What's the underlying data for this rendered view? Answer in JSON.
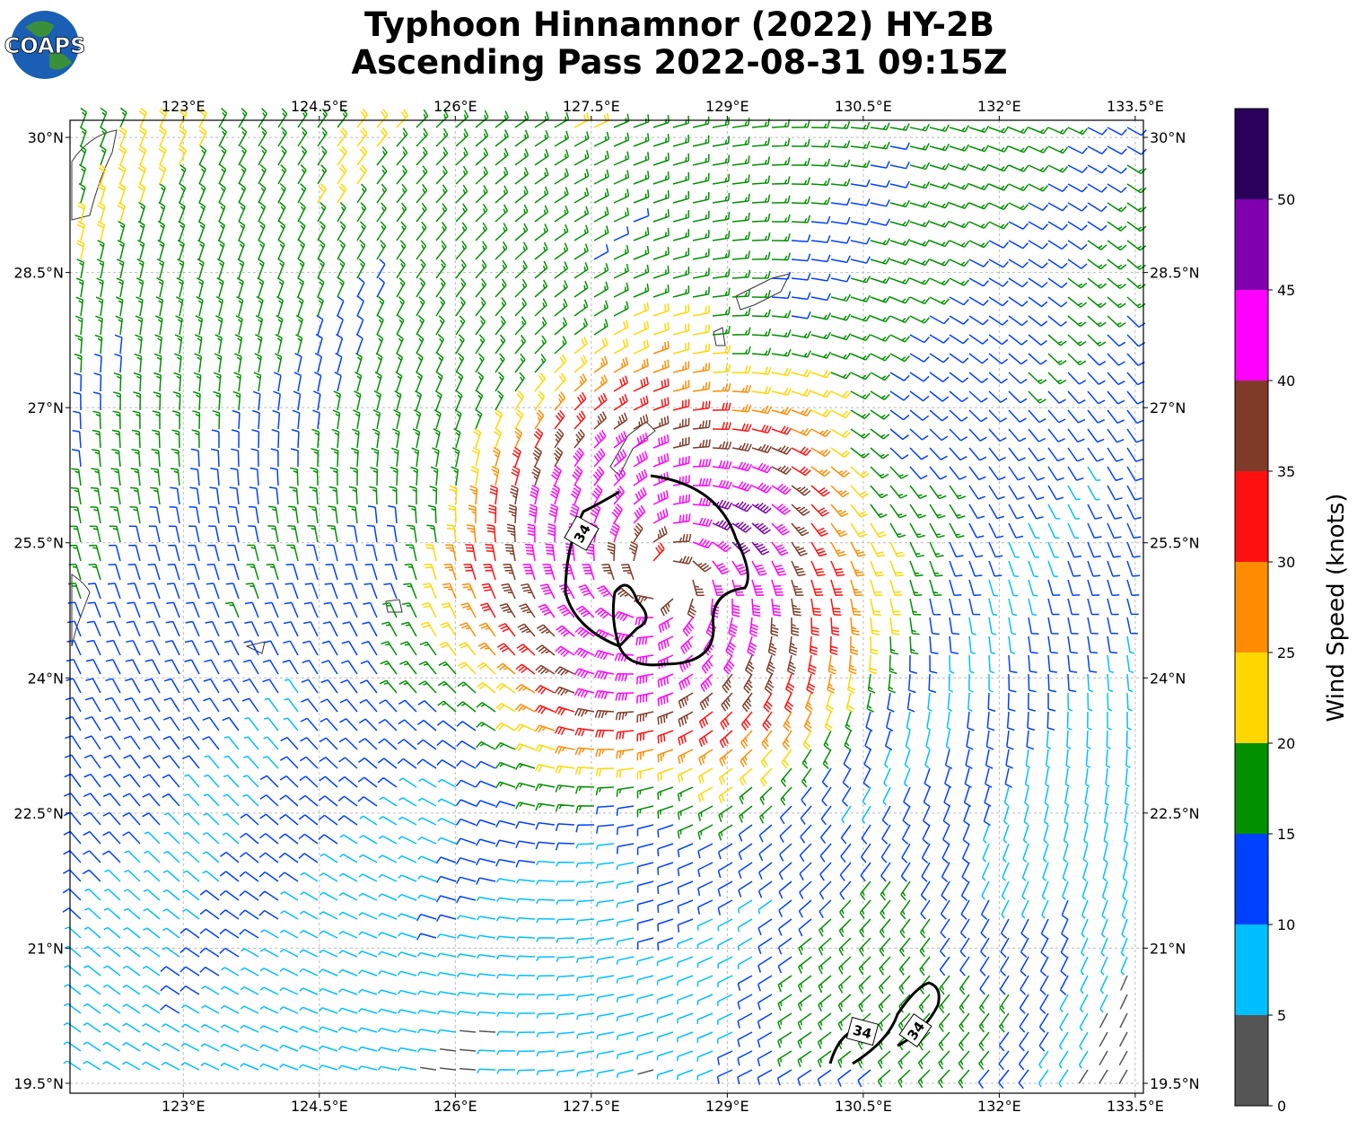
{
  "logo": "COAPS",
  "title": [
    "Typhoon Hinnamnor (2022) HY-2B",
    "Ascending Pass 2022-08-31 09:15Z"
  ],
  "map": {
    "xlim": [
      121.75,
      133.59
    ],
    "ylim": [
      19.39,
      30.19
    ],
    "xticks": [
      {
        "value": 123,
        "label": "123°E"
      },
      {
        "value": 124.5,
        "label": "124.5°E"
      },
      {
        "value": 126,
        "label": "126°E"
      },
      {
        "value": 127.5,
        "label": "127.5°E"
      },
      {
        "value": 129,
        "label": "129°E"
      },
      {
        "value": 130.5,
        "label": "130.5°E"
      },
      {
        "value": 132,
        "label": "132°E"
      },
      {
        "value": 133.5,
        "label": "133.5°E"
      }
    ],
    "yticks": [
      {
        "value": 19.5,
        "label": "19.5°N"
      },
      {
        "value": 21,
        "label": "21°N"
      },
      {
        "value": 22.5,
        "label": "22.5°N"
      },
      {
        "value": 24,
        "label": "24°N"
      },
      {
        "value": 25.5,
        "label": "25.5°N"
      },
      {
        "value": 27,
        "label": "27°N"
      },
      {
        "value": 28.5,
        "label": "28.5°N"
      },
      {
        "value": 30,
        "label": "30°N"
      }
    ],
    "grid": true,
    "contour_labels": [
      "34",
      "34",
      "34"
    ]
  },
  "colorbar": {
    "label": "Wind Speed (knots)",
    "bounds": [
      0,
      5,
      10,
      15,
      20,
      25,
      30,
      35,
      40,
      45,
      50,
      55
    ],
    "colors": [
      "#555555",
      "#00bfff",
      "#0040ff",
      "#009000",
      "#ffd700",
      "#ff8c00",
      "#ff1010",
      "#7f3b28",
      "#ff00ff",
      "#8000b0",
      "#2a005a"
    ],
    "ticks": [
      0,
      5,
      10,
      15,
      20,
      25,
      30,
      35,
      40,
      45,
      50
    ]
  }
}
